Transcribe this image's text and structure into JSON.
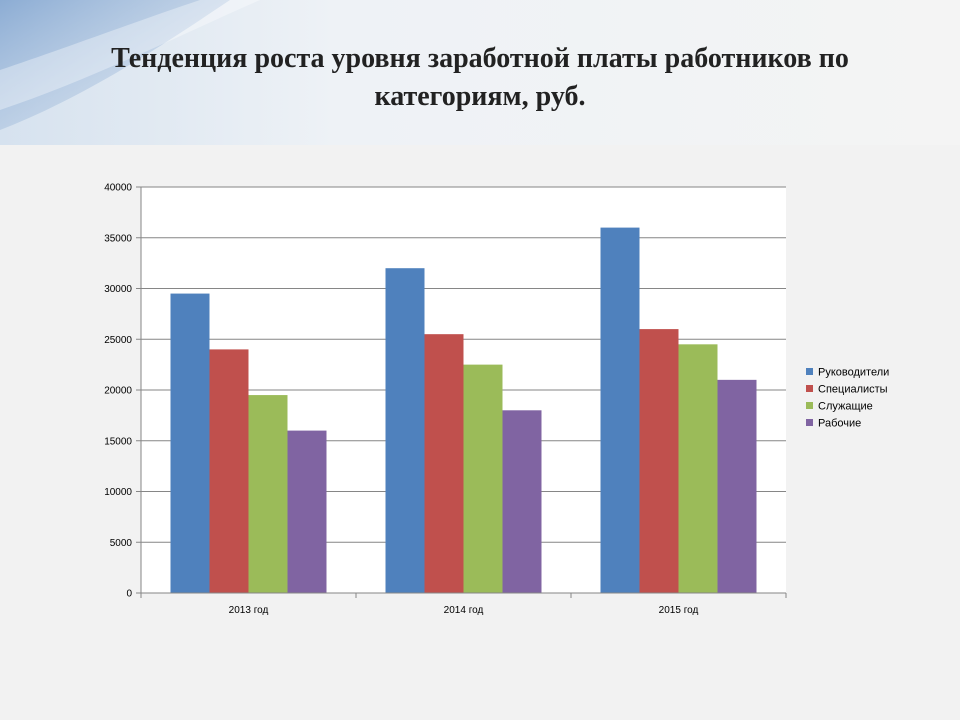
{
  "slide": {
    "title": "Тенденция роста уровня заработной платы работников по категориям, руб."
  },
  "chart_data": {
    "type": "bar",
    "title": "",
    "xlabel": "",
    "ylabel": "",
    "categories": [
      "2013 год",
      "2014 год",
      "2015 год"
    ],
    "series": [
      {
        "name": "Руководители",
        "color": "#4f81bd",
        "values": [
          29500,
          32000,
          36000
        ]
      },
      {
        "name": "Специалисты",
        "color": "#c0504d",
        "values": [
          24000,
          25500,
          26000
        ]
      },
      {
        "name": "Служащие",
        "color": "#9bbb59",
        "values": [
          19500,
          22500,
          24500
        ]
      },
      {
        "name": "Рабочие",
        "color": "#8064a2",
        "values": [
          16000,
          18000,
          21000
        ]
      }
    ],
    "ylim": [
      0,
      40000
    ],
    "yticks": [
      0,
      5000,
      10000,
      15000,
      20000,
      25000,
      30000,
      35000,
      40000
    ],
    "grid": true,
    "legend_position": "right"
  }
}
